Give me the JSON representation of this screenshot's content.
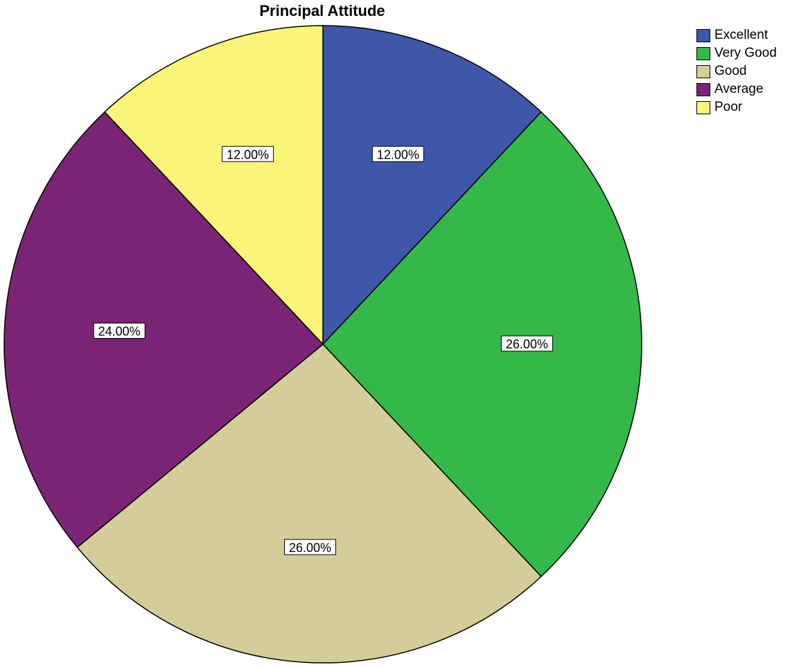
{
  "chart_data": {
    "type": "pie",
    "title": "Principal Attitude",
    "categories": [
      "Excellent",
      "Very Good",
      "Good",
      "Average",
      "Poor"
    ],
    "values": [
      12,
      26,
      26,
      24,
      12
    ],
    "data_labels": [
      "12.00%",
      "26.00%",
      "26.00%",
      "24.00%",
      "12.00%"
    ],
    "colors": [
      "#3e57a8",
      "#34b84a",
      "#d4cd99",
      "#7a2476",
      "#fbf679"
    ],
    "start_angle_deg": 0,
    "direction": "clockwise",
    "legend_position": "top-right"
  }
}
